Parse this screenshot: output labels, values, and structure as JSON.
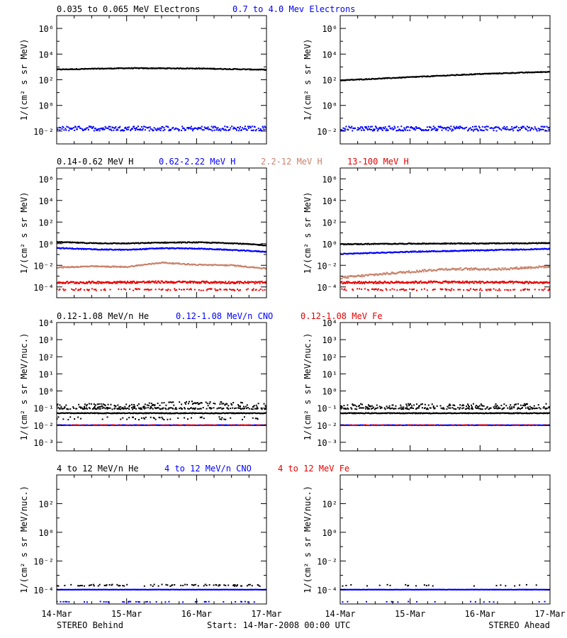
{
  "figure": {
    "left_footer": "STEREO Behind",
    "center_footer": "Start: 14-Mar-2008 00:00 UTC",
    "right_footer": "STEREO Ahead",
    "x_ticks": [
      "14-Mar",
      "15-Mar",
      "16-Mar",
      "17-Mar"
    ]
  },
  "chart_data": [
    {
      "type": "scatter",
      "row": 1,
      "ylabel": "1/(cm² s sr MeV)",
      "yscale": "log",
      "ylim_exp": [
        -3,
        7
      ],
      "ytick_exps": [
        -2,
        0,
        2,
        4,
        6
      ],
      "xlim_days": [
        0,
        3
      ],
      "legend": [
        {
          "label": "0.035 to 0.065 MeV Electrons",
          "color": "#000000"
        },
        {
          "label": "0.7 to 4.0 Mev Electrons",
          "color": "#0000ff"
        }
      ],
      "panels": [
        {
          "side": "STEREO Behind",
          "series": [
            {
              "color": "#000000",
              "density": 1.0,
              "noise": 0.03,
              "knots": [
                [
                  0,
                  2.8
                ],
                [
                  1,
                  2.9
                ],
                [
                  2,
                  2.88
                ],
                [
                  3,
                  2.78
                ]
              ]
            },
            {
              "color": "#0000ff",
              "density": 0.9,
              "noise": 0.18,
              "knots": [
                [
                  0,
                  -1.8
                ],
                [
                  3,
                  -1.8
                ]
              ]
            }
          ]
        },
        {
          "side": "STEREO Ahead",
          "series": [
            {
              "color": "#000000",
              "density": 1.0,
              "noise": 0.03,
              "knots": [
                [
                  0,
                  1.95
                ],
                [
                  1,
                  2.2
                ],
                [
                  2,
                  2.45
                ],
                [
                  3,
                  2.62
                ]
              ]
            },
            {
              "color": "#0000ff",
              "density": 0.9,
              "noise": 0.18,
              "knots": [
                [
                  0,
                  -1.8
                ],
                [
                  3,
                  -1.82
                ]
              ]
            }
          ]
        }
      ]
    },
    {
      "type": "scatter",
      "row": 2,
      "ylabel": "1/(cm² s sr MeV)",
      "yscale": "log",
      "ylim_exp": [
        -5,
        7
      ],
      "ytick_exps": [
        -4,
        -2,
        0,
        2,
        4,
        6
      ],
      "xlim_days": [
        0,
        3
      ],
      "legend": [
        {
          "label": "0.14-0.62 MeV H",
          "color": "#000000"
        },
        {
          "label": "0.62-2.22 MeV H",
          "color": "#0000ff"
        },
        {
          "label": "2.2-12 MeV H",
          "color": "#c8826a"
        },
        {
          "label": "13-100 MeV H",
          "color": "#e60000"
        }
      ],
      "panels": [
        {
          "side": "STEREO Behind",
          "series": [
            {
              "color": "#000000",
              "density": 1.0,
              "noise": 0.04,
              "knots": [
                [
                  0,
                  0.15
                ],
                [
                  0.5,
                  0.05
                ],
                [
                  1,
                  0.02
                ],
                [
                  1.5,
                  0.1
                ],
                [
                  2,
                  0.12
                ],
                [
                  2.5,
                  0.05
                ],
                [
                  3,
                  -0.15
                ]
              ]
            },
            {
              "color": "#0000ff",
              "density": 1.0,
              "noise": 0.04,
              "knots": [
                [
                  0,
                  -0.4
                ],
                [
                  0.5,
                  -0.52
                ],
                [
                  1,
                  -0.57
                ],
                [
                  1.5,
                  -0.42
                ],
                [
                  2,
                  -0.45
                ],
                [
                  2.5,
                  -0.58
                ],
                [
                  3,
                  -0.75
                ]
              ]
            },
            {
              "color": "#c8826a",
              "density": 1.0,
              "noise": 0.05,
              "knots": [
                [
                  0,
                  -2.2
                ],
                [
                  0.5,
                  -2.1
                ],
                [
                  1,
                  -2.15
                ],
                [
                  1.5,
                  -1.75
                ],
                [
                  2,
                  -1.95
                ],
                [
                  2.5,
                  -2.0
                ],
                [
                  3,
                  -2.3
                ]
              ]
            },
            {
              "color": "#e60000",
              "density": 1.0,
              "noise": 0.1,
              "knots": [
                [
                  0,
                  -3.6
                ],
                [
                  1.5,
                  -3.55
                ],
                [
                  3,
                  -3.6
                ]
              ]
            },
            {
              "color": "#e60000",
              "density": 0.35,
              "noise": 0.08,
              "knots": [
                [
                  0,
                  -4.25
                ],
                [
                  3,
                  -4.25
                ]
              ]
            }
          ]
        },
        {
          "side": "STEREO Ahead",
          "series": [
            {
              "color": "#000000",
              "density": 1.0,
              "noise": 0.04,
              "knots": [
                [
                  0,
                  -0.05
                ],
                [
                  1,
                  0.0
                ],
                [
                  2,
                  0.02
                ],
                [
                  3,
                  0.05
                ]
              ]
            },
            {
              "color": "#0000ff",
              "density": 1.0,
              "noise": 0.04,
              "knots": [
                [
                  0,
                  -0.95
                ],
                [
                  1,
                  -0.75
                ],
                [
                  2,
                  -0.62
                ],
                [
                  3,
                  -0.48
                ]
              ]
            },
            {
              "color": "#c8826a",
              "density": 1.0,
              "noise": 0.1,
              "knots": [
                [
                  0,
                  -3.15
                ],
                [
                  0.7,
                  -2.75
                ],
                [
                  1.5,
                  -2.35
                ],
                [
                  2.3,
                  -2.35
                ],
                [
                  3,
                  -2.1
                ]
              ]
            },
            {
              "color": "#e60000",
              "density": 1.0,
              "noise": 0.1,
              "knots": [
                [
                  0,
                  -3.6
                ],
                [
                  1.5,
                  -3.55
                ],
                [
                  3,
                  -3.6
                ]
              ]
            },
            {
              "color": "#e60000",
              "density": 0.35,
              "noise": 0.08,
              "knots": [
                [
                  0,
                  -4.25
                ],
                [
                  3,
                  -4.25
                ]
              ]
            }
          ]
        }
      ]
    },
    {
      "type": "scatter",
      "row": 3,
      "ylabel": "1/(cm² s sr MeV/nuc.)",
      "yscale": "log",
      "ylim_exp": [
        -3.5,
        4
      ],
      "ytick_exps": [
        -3,
        -2,
        -1,
        0,
        1,
        2,
        3,
        4
      ],
      "xlim_days": [
        0,
        3
      ],
      "legend": [
        {
          "label": "0.12-1.08 MeV/n He",
          "color": "#000000"
        },
        {
          "label": "0.12-1.08 MeV/n CNO",
          "color": "#0000ff"
        },
        {
          "label": "0.12-1.08 MeV Fe",
          "color": "#e60000"
        }
      ],
      "panels": [
        {
          "side": "STEREO Behind",
          "series": [
            {
              "color": "#000000",
              "density": 1.0,
              "noise": 0.02,
              "knots": [
                [
                  0,
                  -1.3
                ],
                [
                  3,
                  -1.3
                ]
              ]
            },
            {
              "color": "#000000",
              "density": 0.55,
              "noise": 0.05,
              "knots": [
                [
                  0,
                  -1.02
                ],
                [
                  3,
                  -1.02
                ]
              ]
            },
            {
              "color": "#000000",
              "density": 0.45,
              "noise": 0.12,
              "knots": [
                [
                  0,
                  -0.85
                ],
                [
                  1.2,
                  -0.85
                ],
                [
                  1.8,
                  -0.72
                ],
                [
                  2.4,
                  -0.75
                ],
                [
                  3,
                  -0.85
                ]
              ]
            },
            {
              "color": "#000000",
              "density": 0.2,
              "noise": 0.08,
              "knots": [
                [
                  0,
                  -1.6
                ],
                [
                  3,
                  -1.6
                ]
              ]
            },
            {
              "color": "#0000ff",
              "density": 0.9,
              "noise": 0.01,
              "knots": [
                [
                  0,
                  -2.0
                ],
                [
                  3,
                  -2.0
                ]
              ]
            },
            {
              "color": "#e60000",
              "density": 0.35,
              "noise": 0.01,
              "knots": [
                [
                  0,
                  -2.0
                ],
                [
                  3,
                  -2.0
                ]
              ]
            }
          ]
        },
        {
          "side": "STEREO Ahead",
          "series": [
            {
              "color": "#000000",
              "density": 1.0,
              "noise": 0.02,
              "knots": [
                [
                  0,
                  -1.3
                ],
                [
                  3,
                  -1.3
                ]
              ]
            },
            {
              "color": "#000000",
              "density": 0.5,
              "noise": 0.05,
              "knots": [
                [
                  0,
                  -1.02
                ],
                [
                  3,
                  -1.02
                ]
              ]
            },
            {
              "color": "#000000",
              "density": 0.35,
              "noise": 0.1,
              "knots": [
                [
                  0,
                  -0.85
                ],
                [
                  3,
                  -0.85
                ]
              ]
            },
            {
              "color": "#0000ff",
              "density": 0.9,
              "noise": 0.01,
              "knots": [
                [
                  0,
                  -2.0
                ],
                [
                  3,
                  -2.0
                ]
              ]
            },
            {
              "color": "#e60000",
              "density": 0.3,
              "noise": 0.01,
              "knots": [
                [
                  0,
                  -2.0
                ],
                [
                  3,
                  -2.0
                ]
              ]
            }
          ]
        }
      ]
    },
    {
      "type": "scatter",
      "row": 4,
      "ylabel": "1/(cm² s sr MeV/nuc.)",
      "yscale": "log",
      "ylim_exp": [
        -5,
        4
      ],
      "ytick_exps": [
        -4,
        -2,
        0,
        2
      ],
      "xlim_days": [
        0,
        3
      ],
      "legend": [
        {
          "label": "4 to 12 MeV/n He",
          "color": "#000000"
        },
        {
          "label": "4 to 12 MeV/n CNO",
          "color": "#0000ff"
        },
        {
          "label": "4 to 12 MeV Fe",
          "color": "#e60000"
        }
      ],
      "panels": [
        {
          "side": "STEREO Behind",
          "series": [
            {
              "color": "#0000ff",
              "density": 1.0,
              "noise": 0.01,
              "knots": [
                [
                  0,
                  -4.0
                ],
                [
                  3,
                  -4.0
                ]
              ]
            },
            {
              "color": "#000000",
              "density": 0.25,
              "noise": 0.06,
              "knots": [
                [
                  0,
                  -3.7
                ],
                [
                  3,
                  -3.7
                ]
              ]
            },
            {
              "color": "#0000ff",
              "density": 0.12,
              "noise": 0.02,
              "knots": [
                [
                  0,
                  -4.85
                ],
                [
                  3,
                  -4.85
                ]
              ]
            }
          ]
        },
        {
          "side": "STEREO Ahead",
          "series": [
            {
              "color": "#0000ff",
              "density": 1.0,
              "noise": 0.01,
              "knots": [
                [
                  0,
                  -4.0
                ],
                [
                  3,
                  -4.0
                ]
              ]
            },
            {
              "color": "#000000",
              "density": 0.12,
              "noise": 0.05,
              "knots": [
                [
                  0,
                  -3.7
                ],
                [
                  3,
                  -3.7
                ]
              ]
            },
            {
              "color": "#0000ff",
              "density": 0.06,
              "noise": 0.02,
              "knots": [
                [
                  0,
                  -4.85
                ],
                [
                  3,
                  -4.85
                ]
              ]
            }
          ]
        }
      ]
    }
  ]
}
